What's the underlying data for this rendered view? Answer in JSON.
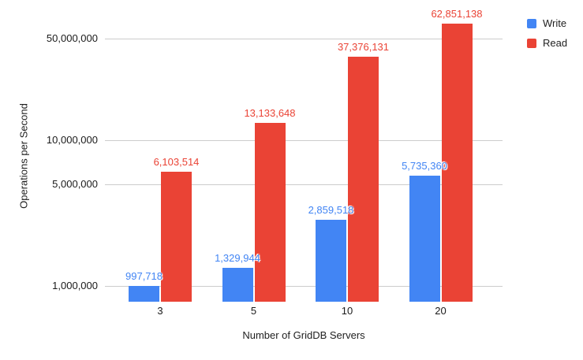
{
  "chart_data": {
    "type": "bar",
    "xlabel": "Number of GridDB Servers",
    "ylabel": "Operations per Second",
    "yscale": "log",
    "ylim": [
      760000,
      80000000
    ],
    "grid": true,
    "legend_position": "top-right",
    "categories": [
      "3",
      "5",
      "10",
      "20"
    ],
    "series": [
      {
        "name": "Write",
        "color": "#4285F4",
        "values": [
          997718,
          1329944,
          2859518,
          5735360
        ],
        "labels": [
          "997,718",
          "1,329,944",
          "2,859,518",
          "5,735,360"
        ]
      },
      {
        "name": "Read",
        "color": "#EA4335",
        "values": [
          6103514,
          13133648,
          37376131,
          62851138
        ],
        "labels": [
          "6,103,514",
          "13,133,648",
          "37,376,131",
          "62,851,138"
        ]
      }
    ],
    "yticks": [
      {
        "value": 1000000,
        "label": "1,000,000"
      },
      {
        "value": 5000000,
        "label": "5,000,000"
      },
      {
        "value": 10000000,
        "label": "10,000,000"
      },
      {
        "value": 50000000,
        "label": "50,000,000"
      }
    ],
    "colors": {
      "gridline": "#cccccc",
      "text": "#212121",
      "background": "#ffffff"
    }
  }
}
